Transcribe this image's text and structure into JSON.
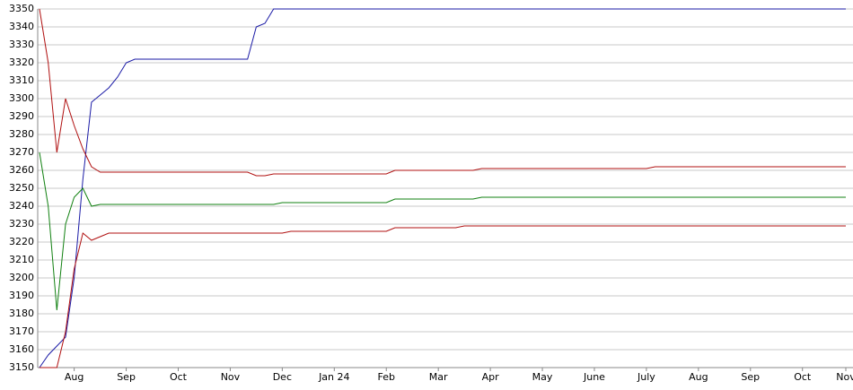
{
  "chart_data": {
    "type": "line",
    "categories": [
      null,
      null,
      null,
      null,
      "Aug",
      null,
      null,
      null,
      null,
      null,
      "Sep",
      null,
      null,
      null,
      null,
      null,
      "Oct",
      null,
      null,
      null,
      null,
      null,
      "Nov",
      null,
      null,
      null,
      null,
      null,
      "Dec",
      null,
      null,
      null,
      null,
      null,
      "Jan 24",
      null,
      null,
      null,
      null,
      null,
      "Feb",
      null,
      null,
      null,
      null,
      null,
      "Mar",
      null,
      null,
      null,
      null,
      null,
      "Apr",
      null,
      null,
      null,
      null,
      null,
      "May",
      null,
      null,
      null,
      null,
      null,
      "June",
      null,
      null,
      null,
      null,
      null,
      "July",
      null,
      null,
      null,
      null,
      null,
      "Aug",
      null,
      null,
      null,
      null,
      null,
      "Sep",
      null,
      null,
      null,
      null,
      null,
      "Oct",
      null,
      null,
      null,
      null,
      "Nov"
    ],
    "series": [
      {
        "color": "#1a1aa6",
        "values": [
          3150,
          3157,
          3162,
          3167,
          3200,
          3255,
          3298,
          3302,
          3306,
          3312,
          3320,
          3322,
          3322,
          3322,
          3322,
          3322,
          3322,
          3322,
          3322,
          3322,
          3322,
          3322,
          3322,
          3322,
          3322,
          3340,
          3342,
          3350,
          3350,
          3350,
          3350,
          3350,
          3350,
          3350,
          3350,
          3350,
          3350,
          3350,
          3350,
          3350,
          3350,
          3350,
          3350,
          3350,
          3350,
          3350,
          3350,
          3350,
          3350,
          3350,
          3350,
          3350,
          3350,
          3350,
          3350,
          3350,
          3350,
          3350,
          3350,
          3350,
          3350,
          3350,
          3350,
          3350,
          3350,
          3350,
          3350,
          3350,
          3350,
          3350,
          3350,
          3350,
          3350,
          3350,
          3350,
          3350,
          3350,
          3350,
          3350,
          3350,
          3350,
          3350,
          3350,
          3350,
          3350,
          3350,
          3350,
          3350,
          3350,
          3350,
          3350,
          3350,
          3350,
          3350
        ]
      },
      {
        "color": "#b01010",
        "values": [
          3350,
          3320,
          3270,
          3300,
          3285,
          3272,
          3262,
          3259,
          3259,
          3259,
          3259,
          3259,
          3259,
          3259,
          3259,
          3259,
          3259,
          3259,
          3259,
          3259,
          3259,
          3259,
          3259,
          3259,
          3259,
          3257,
          3257,
          3258,
          3258,
          3258,
          3258,
          3258,
          3258,
          3258,
          3258,
          3258,
          3258,
          3258,
          3258,
          3258,
          3258,
          3260,
          3260,
          3260,
          3260,
          3260,
          3260,
          3260,
          3260,
          3260,
          3260,
          3261,
          3261,
          3261,
          3261,
          3261,
          3261,
          3261,
          3261,
          3261,
          3261,
          3261,
          3261,
          3261,
          3261,
          3261,
          3261,
          3261,
          3261,
          3261,
          3261,
          3262,
          3262,
          3262,
          3262,
          3262,
          3262,
          3262,
          3262,
          3262,
          3262,
          3262,
          3262,
          3262,
          3262,
          3262,
          3262,
          3262,
          3262,
          3262,
          3262,
          3262,
          3262,
          3262
        ]
      },
      {
        "color": "#108010",
        "values": [
          3270,
          3240,
          3182,
          3230,
          3245,
          3250,
          3240,
          3241,
          3241,
          3241,
          3241,
          3241,
          3241,
          3241,
          3241,
          3241,
          3241,
          3241,
          3241,
          3241,
          3241,
          3241,
          3241,
          3241,
          3241,
          3241,
          3241,
          3241,
          3242,
          3242,
          3242,
          3242,
          3242,
          3242,
          3242,
          3242,
          3242,
          3242,
          3242,
          3242,
          3242,
          3244,
          3244,
          3244,
          3244,
          3244,
          3244,
          3244,
          3244,
          3244,
          3244,
          3245,
          3245,
          3245,
          3245,
          3245,
          3245,
          3245,
          3245,
          3245,
          3245,
          3245,
          3245,
          3245,
          3245,
          3245,
          3245,
          3245,
          3245,
          3245,
          3245,
          3245,
          3245,
          3245,
          3245,
          3245,
          3245,
          3245,
          3245,
          3245,
          3245,
          3245,
          3245,
          3245,
          3245,
          3245,
          3245,
          3245,
          3245,
          3245,
          3245,
          3245,
          3245,
          3245
        ]
      },
      {
        "color": "#b01010",
        "values": [
          3150,
          3150,
          3150,
          3170,
          3205,
          3225,
          3221,
          3223,
          3225,
          3225,
          3225,
          3225,
          3225,
          3225,
          3225,
          3225,
          3225,
          3225,
          3225,
          3225,
          3225,
          3225,
          3225,
          3225,
          3225,
          3225,
          3225,
          3225,
          3225,
          3226,
          3226,
          3226,
          3226,
          3226,
          3226,
          3226,
          3226,
          3226,
          3226,
          3226,
          3226,
          3228,
          3228,
          3228,
          3228,
          3228,
          3228,
          3228,
          3228,
          3229,
          3229,
          3229,
          3229,
          3229,
          3229,
          3229,
          3229,
          3229,
          3229,
          3229,
          3229,
          3229,
          3229,
          3229,
          3229,
          3229,
          3229,
          3229,
          3229,
          3229,
          3229,
          3229,
          3229,
          3229,
          3229,
          3229,
          3229,
          3229,
          3229,
          3229,
          3229,
          3229,
          3229,
          3229,
          3229,
          3229,
          3229,
          3229,
          3229,
          3229,
          3229,
          3229,
          3229,
          3229
        ]
      }
    ],
    "ylim": [
      3150,
      3350
    ],
    "yticks": [
      3150,
      3160,
      3170,
      3180,
      3190,
      3200,
      3210,
      3220,
      3230,
      3240,
      3250,
      3260,
      3270,
      3280,
      3290,
      3300,
      3310,
      3320,
      3330,
      3340,
      3350
    ],
    "grid": true
  }
}
